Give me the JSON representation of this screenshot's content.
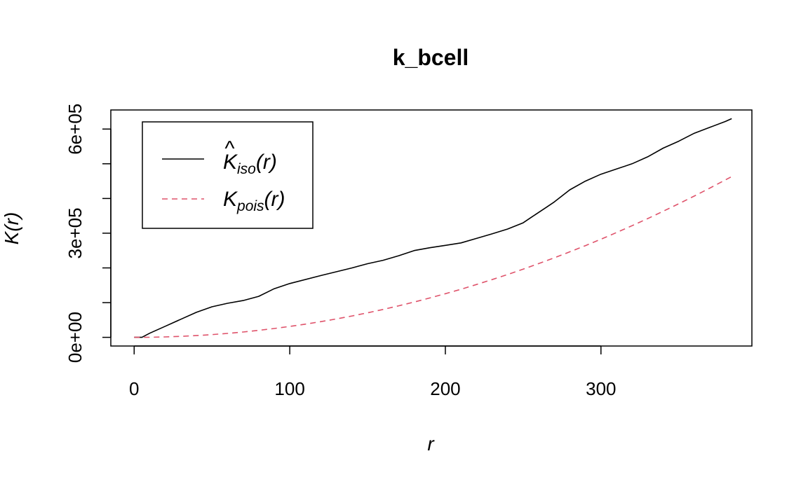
{
  "chart_data": {
    "type": "line",
    "title": "k_bcell",
    "xlabel": "r",
    "ylabel": "K(r)",
    "xlim": [
      -15,
      397
    ],
    "ylim": [
      -25000,
      655000
    ],
    "xticks": [
      0,
      100,
      200,
      300
    ],
    "xtick_labels": [
      "0",
      "100",
      "200",
      "300"
    ],
    "yticks": [
      0,
      100000,
      200000,
      300000,
      400000,
      500000,
      600000
    ],
    "ytick_labels": [
      "0e+00",
      "",
      "",
      "3e+05",
      "",
      "",
      "6e+05"
    ],
    "grid": false,
    "legend_position": "top-left",
    "series": [
      {
        "name": "K̂iso(r)",
        "color": "#000000",
        "dash": "solid",
        "x": [
          0,
          5,
          10,
          20,
          30,
          40,
          50,
          60,
          70,
          80,
          90,
          100,
          120,
          140,
          150,
          160,
          170,
          180,
          190,
          200,
          210,
          220,
          230,
          240,
          250,
          255,
          260,
          265,
          270,
          280,
          290,
          300,
          310,
          320,
          330,
          340,
          350,
          360,
          370,
          380,
          384
        ],
        "y": [
          0,
          0,
          12000,
          32000,
          52000,
          72000,
          88000,
          98000,
          106000,
          118000,
          140000,
          155000,
          178000,
          200000,
          212000,
          222000,
          235000,
          250000,
          258000,
          265000,
          272000,
          285000,
          298000,
          312000,
          330000,
          345000,
          360000,
          375000,
          390000,
          425000,
          450000,
          470000,
          485000,
          500000,
          520000,
          545000,
          565000,
          588000,
          605000,
          622000,
          630000
        ]
      },
      {
        "name": "Kpois(r)",
        "color": "#DF536B",
        "dash": "dashed",
        "x": [
          0,
          10,
          20,
          30,
          40,
          50,
          60,
          70,
          80,
          90,
          100,
          110,
          120,
          130,
          140,
          150,
          160,
          170,
          180,
          190,
          200,
          210,
          220,
          230,
          240,
          250,
          260,
          270,
          280,
          290,
          300,
          310,
          320,
          330,
          340,
          350,
          360,
          370,
          380,
          384
        ],
        "y": [
          0,
          300,
          1300,
          2800,
          5000,
          7900,
          11300,
          15400,
          20100,
          25400,
          31400,
          38000,
          45200,
          53100,
          61600,
          70700,
          80400,
          90800,
          101800,
          113400,
          125700,
          138500,
          152100,
          166200,
          181000,
          196300,
          212400,
          229000,
          246300,
          264200,
          282700,
          301900,
          321700,
          342100,
          363200,
          384800,
          407100,
          430000,
          453600,
          463100
        ]
      }
    ]
  }
}
